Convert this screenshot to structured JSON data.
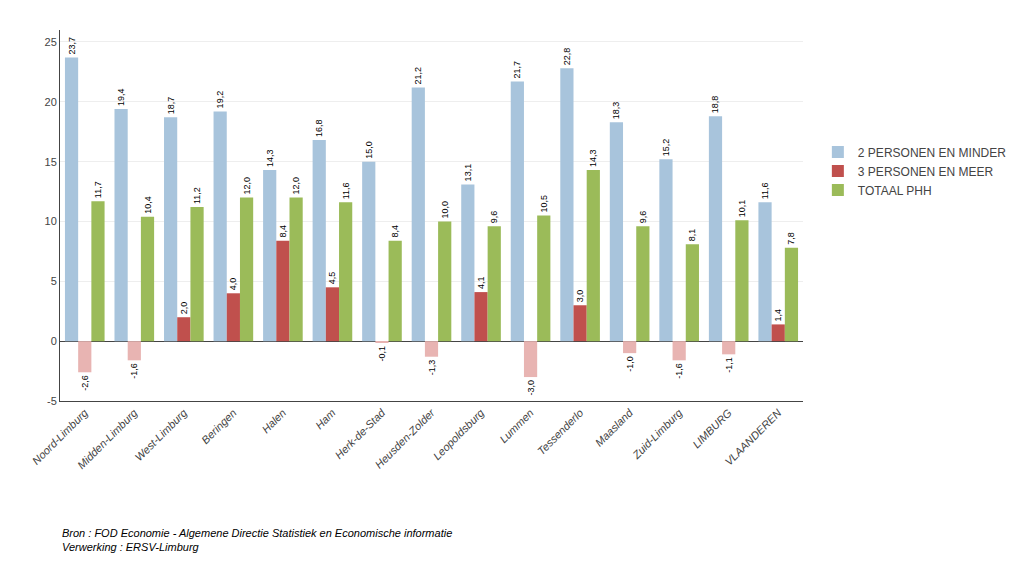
{
  "chart_data": {
    "type": "bar",
    "categories": [
      "Noord-Limburg",
      "Midden-Limburg",
      "West-Limburg",
      "Beringen",
      "Halen",
      "Ham",
      "Herk-de-Stad",
      "Heusden-Zolder",
      "Leopoldsburg",
      "Lummen",
      "Tessenderlo",
      "Maasland",
      "Zuid-Limburg",
      "LIMBURG",
      "VLAANDEREN"
    ],
    "series": [
      {
        "name": "2 PERSONEN EN MINDER",
        "color": "#A8C4DC",
        "values": [
          23.7,
          19.4,
          18.7,
          19.2,
          14.3,
          16.8,
          15.0,
          21.2,
          13.1,
          21.7,
          22.8,
          18.3,
          15.2,
          18.8,
          11.6
        ],
        "value_labels": [
          "23,7",
          "19,4",
          "18,7",
          "19,2",
          "14,3",
          "16,8",
          "15,0",
          "21,2",
          "13,1",
          "21,7",
          "22,8",
          "18,3",
          "15,2",
          "18,8",
          "11,6"
        ]
      },
      {
        "name": "3 PERSONEN EN MEER",
        "color": "#C0504D",
        "colors": [
          "#E8B4B2",
          "#E8B4B2",
          "#C0504D",
          "#C0504D",
          "#C0504D",
          "#C0504D",
          "#E8B4B2",
          "#E8B4B2",
          "#C0504D",
          "#E8B4B2",
          "#C0504D",
          "#E8B4B2",
          "#E8B4B2",
          "#E8B4B2",
          "#C0504D"
        ],
        "values": [
          -2.6,
          -1.6,
          2.0,
          4.0,
          8.4,
          4.5,
          -0.1,
          -1.3,
          4.1,
          -3.0,
          3.0,
          -1.0,
          -1.6,
          -1.1,
          1.4
        ],
        "value_labels": [
          "-2,6",
          "-1,6",
          "2,0",
          "4,0",
          "8,4",
          "4,5",
          "-0,1",
          "-1,3",
          "4,1",
          "-3,0",
          "3,0",
          "-1,0",
          "-1,6",
          "-1,1",
          "1,4"
        ]
      },
      {
        "name": "TOTAAL PHH",
        "color": "#9BBB59",
        "values": [
          11.7,
          10.4,
          11.2,
          12.0,
          12.0,
          11.6,
          8.4,
          10.0,
          9.6,
          10.5,
          14.3,
          9.6,
          8.1,
          10.1,
          7.8
        ],
        "value_labels": [
          "11,7",
          "10,4",
          "11,2",
          "12,0",
          "12,0",
          "11,6",
          "8,4",
          "10,0",
          "9,6",
          "10,5",
          "14,3",
          "9,6",
          "8,1",
          "10,1",
          "7,8"
        ]
      }
    ],
    "ylim": [
      -5,
      26
    ],
    "yticks": [
      -5,
      0,
      5,
      10,
      15,
      20,
      25
    ],
    "grid": true,
    "legend": "right",
    "data_labels": true,
    "annotations": [
      "Bron : FOD Economie - Algemene Directie Statistiek en Economische informatie\nVerwerking : ERSV-Limburg"
    ]
  }
}
